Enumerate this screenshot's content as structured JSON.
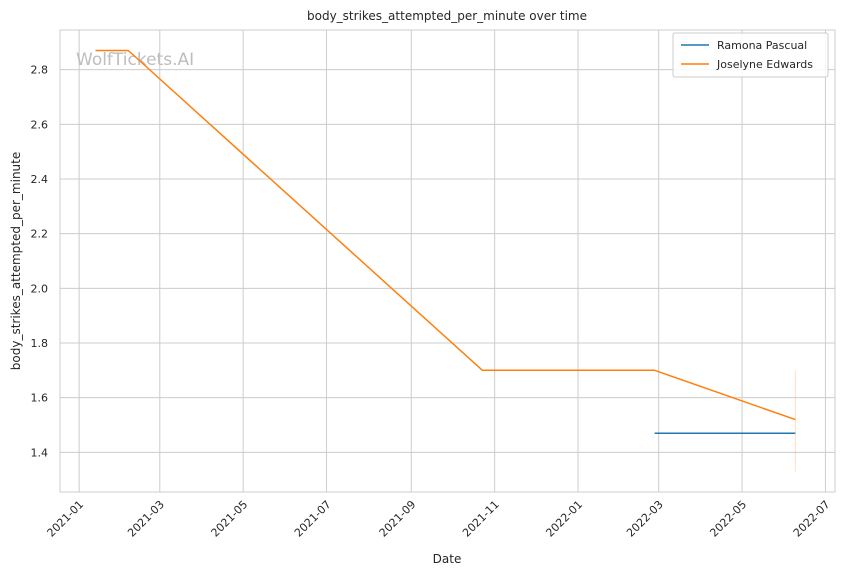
{
  "chart_data": {
    "type": "line",
    "title": "body_strikes_attempted_per_minute over time",
    "xlabel": "Date",
    "ylabel": "body_strikes_attempted_per_minute",
    "x_ticks": [
      "2021-01",
      "2021-03",
      "2021-05",
      "2021-07",
      "2021-09",
      "2021-11",
      "2022-01",
      "2022-03",
      "2022-05",
      "2022-07"
    ],
    "y_ticks": [
      "1.4",
      "1.6",
      "1.8",
      "2.0",
      "2.2",
      "2.4",
      "2.6",
      "2.8"
    ],
    "xlim": [
      "2020-12-18",
      "2022-07-08"
    ],
    "ylim": [
      1.255,
      2.945
    ],
    "grid": true,
    "legend_position": "top-right",
    "watermark": "WolfTickets.AI",
    "series": [
      {
        "name": "Ramona Pascual",
        "color": "#1f77b4",
        "points": [
          {
            "x": "2022-02-26",
            "y": 1.47
          },
          {
            "x": "2022-06-09",
            "y": 1.47
          }
        ]
      },
      {
        "name": "Joselyne Edwards",
        "color": "#ff7f0e",
        "points": [
          {
            "x": "2021-01-13",
            "y": 2.87
          },
          {
            "x": "2021-02-06",
            "y": 2.87
          },
          {
            "x": "2021-10-23",
            "y": 1.7
          },
          {
            "x": "2022-02-26",
            "y": 1.7
          },
          {
            "x": "2022-06-09",
            "y": 1.52
          }
        ],
        "error_band": {
          "x": "2022-06-09",
          "low": 1.33,
          "high": 1.7
        }
      }
    ]
  }
}
